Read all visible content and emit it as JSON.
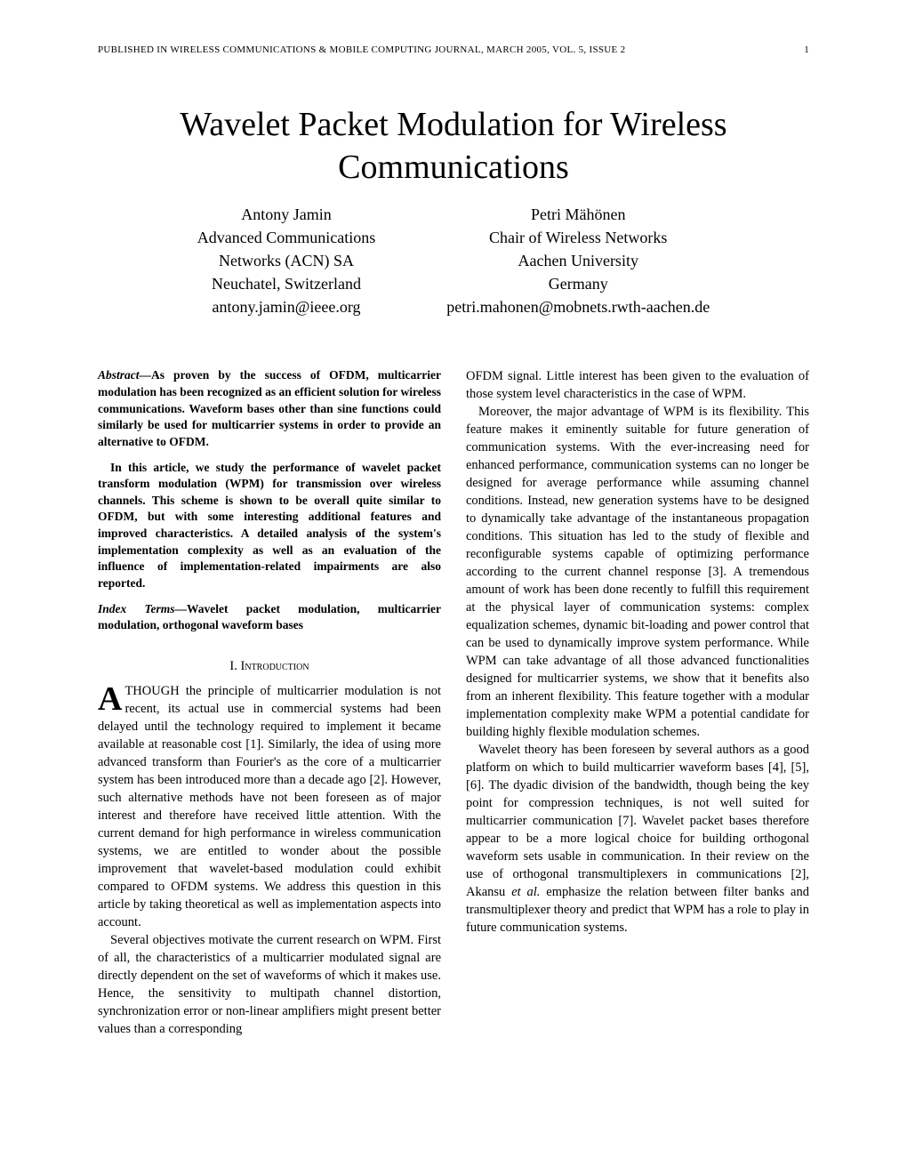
{
  "header": {
    "journal": "PUBLISHED IN WIRELESS COMMUNICATIONS & MOBILE COMPUTING JOURNAL, MARCH 2005, VOL. 5, ISSUE 2",
    "page_number": "1"
  },
  "title": "Wavelet Packet Modulation for Wireless Communications",
  "authors": [
    {
      "name": "Antony Jamin",
      "affil1": "Advanced Communications",
      "affil2": "Networks (ACN) SA",
      "affil3": "Neuchatel, Switzerland",
      "email": "antony.jamin@ieee.org"
    },
    {
      "name": "Petri Mähönen",
      "affil1": "Chair of Wireless Networks",
      "affil2": "Aachen University",
      "affil3": "Germany",
      "email": "petri.mahonen@mobnets.rwth-aachen.de"
    }
  ],
  "abstract": {
    "label": "Abstract—",
    "p1": "As proven by the success of OFDM, multicarrier modulation has been recognized as an efficient solution for wireless communications. Waveform bases other than sine functions could similarly be used for multicarrier systems in order to provide an alternative to OFDM.",
    "p2": "In this article, we study the performance of wavelet packet transform modulation (WPM) for transmission over wireless channels. This scheme is shown to be overall quite similar to OFDM, but with some interesting additional features and improved characteristics. A detailed analysis of the system's implementation complexity as well as an evaluation of the influence of implementation-related impairments are also reported."
  },
  "index_terms": {
    "label": "Index Terms—",
    "text": "Wavelet packet modulation, multicarrier modulation, orthogonal waveform bases"
  },
  "section1": {
    "number": "I.",
    "title": "Introduction"
  },
  "left_col": {
    "dropcap": "A",
    "p1_rest": "THOUGH the principle of multicarrier modulation is not recent, its actual use in commercial systems had been delayed until the technology required to implement it became available at reasonable cost [1]. Similarly, the idea of using more advanced transform than Fourier's as the core of a multicarrier system has been introduced more than a decade ago [2]. However, such alternative methods have not been foreseen as of major interest and therefore have received little attention. With the current demand for high performance in wireless communication systems, we are entitled to wonder about the possible improvement that wavelet-based modulation could exhibit compared to OFDM systems. We address this question in this article by taking theoretical as well as implementation aspects into account.",
    "p2": "Several objectives motivate the current research on WPM. First of all, the characteristics of a multicarrier modulated signal are directly dependent on the set of waveforms of which it makes use. Hence, the sensitivity to multipath channel distortion, synchronization error or non-linear amplifiers might present better values than a corresponding"
  },
  "right_col": {
    "p1": "OFDM signal. Little interest has been given to the evaluation of those system level characteristics in the case of WPM.",
    "p2": "Moreover, the major advantage of WPM is its flexibility. This feature makes it eminently suitable for future generation of communication systems. With the ever-increasing need for enhanced performance, communication systems can no longer be designed for average performance while assuming channel conditions. Instead, new generation systems have to be designed to dynamically take advantage of the instantaneous propagation conditions. This situation has led to the study of flexible and reconfigurable systems capable of optimizing performance according to the current channel response [3]. A tremendous amount of work has been done recently to fulfill this requirement at the physical layer of communication systems: complex equalization schemes, dynamic bit-loading and power control that can be used to dynamically improve system performance. While WPM can take advantage of all those advanced functionalities designed for multicarrier systems, we show that it benefits also from an inherent flexibility. This feature together with a modular implementation complexity make WPM a potential candidate for building highly flexible modulation schemes.",
    "p3_a": "Wavelet theory has been foreseen by several authors as a good platform on which to build multicarrier waveform bases [4], [5], [6]. The dyadic division of the bandwidth, though being the key point for compression techniques, is not well suited for multicarrier communication [7]. Wavelet packet bases therefore appear to be a more logical choice for building orthogonal waveform sets usable in communication. In their review on the use of orthogonal transmultiplexers in communications [2], Akansu ",
    "p3_em": "et al.",
    "p3_b": " emphasize the relation between filter banks and transmultiplexer theory and predict that WPM has a role to play in future communication systems."
  }
}
